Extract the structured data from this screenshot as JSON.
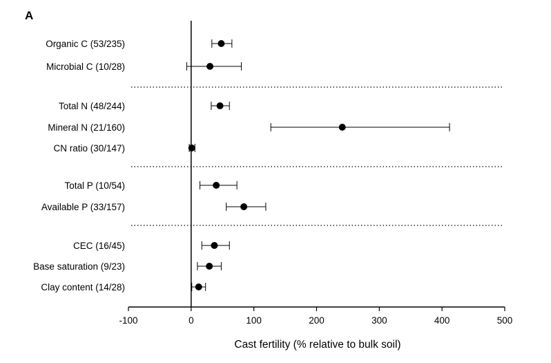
{
  "chart_data": {
    "type": "scatter",
    "subtype": "forest-plot",
    "panel_label": "A",
    "xlabel": "Cast fertility (% relative to bulk soil)",
    "xlim": [
      -100,
      500
    ],
    "xticks": [
      -100,
      0,
      100,
      200,
      300,
      400,
      500
    ],
    "xtick_labels": [
      "-100",
      "0",
      "100",
      "200",
      "300",
      "400",
      "500"
    ],
    "reference_line_x": 0,
    "grid": false,
    "groups": [
      {
        "rows": [
          {
            "label": "Organic C (53/235)",
            "mean": 48,
            "lower": 33,
            "upper": 65
          },
          {
            "label": "Microbial C (10/28)",
            "mean": 30,
            "lower": -7,
            "upper": 80
          }
        ]
      },
      {
        "rows": [
          {
            "label": "Total N (48/244)",
            "mean": 46,
            "lower": 32,
            "upper": 61
          },
          {
            "label": "Mineral N (21/160)",
            "mean": 241,
            "lower": 127,
            "upper": 412
          },
          {
            "label": "CN ratio (30/147)",
            "mean": 1,
            "lower": -3,
            "upper": 6
          }
        ]
      },
      {
        "rows": [
          {
            "label": "Total P (10/54)",
            "mean": 40,
            "lower": 14,
            "upper": 73
          },
          {
            "label": "Available P (33/157)",
            "mean": 84,
            "lower": 56,
            "upper": 119
          }
        ]
      },
      {
        "rows": [
          {
            "label": "CEC (16/45)",
            "mean": 37,
            "lower": 17,
            "upper": 61
          },
          {
            "label": "Base saturation (9/23)",
            "mean": 29,
            "lower": 10,
            "upper": 48
          },
          {
            "label": "Clay content (14/28)",
            "mean": 12,
            "lower": 1,
            "upper": 23
          }
        ]
      }
    ]
  }
}
